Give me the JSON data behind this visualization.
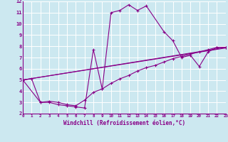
{
  "xlabel": "Windchill (Refroidissement éolien,°C)",
  "xlim": [
    0,
    23
  ],
  "ylim": [
    2,
    12
  ],
  "xticks": [
    0,
    1,
    2,
    3,
    4,
    5,
    6,
    7,
    8,
    9,
    10,
    11,
    12,
    13,
    14,
    15,
    16,
    17,
    18,
    19,
    20,
    21,
    22,
    23
  ],
  "yticks": [
    2,
    3,
    4,
    5,
    6,
    7,
    8,
    9,
    10,
    11,
    12
  ],
  "background_color": "#cce8f0",
  "line_color": "#880088",
  "grid_color": "#ffffff",
  "lines": [
    {
      "x": [
        0,
        1,
        2,
        3,
        4,
        5,
        6,
        7,
        8,
        9,
        10,
        11,
        12,
        13,
        14,
        16,
        17,
        18,
        19,
        20,
        21,
        22,
        23
      ],
      "y": [
        5.0,
        5.1,
        3.0,
        3.0,
        2.8,
        2.7,
        2.6,
        2.5,
        7.7,
        4.2,
        11.0,
        11.2,
        11.7,
        11.2,
        11.6,
        9.3,
        8.5,
        7.0,
        7.2,
        6.2,
        7.5,
        7.9,
        7.9
      ],
      "marker": true
    },
    {
      "x": [
        0,
        2,
        3,
        4,
        5,
        6,
        7,
        8,
        9,
        10,
        11,
        12,
        13,
        14,
        15,
        16,
        17,
        18,
        19,
        20,
        21,
        22,
        23
      ],
      "y": [
        5.0,
        3.0,
        3.1,
        3.0,
        2.8,
        2.7,
        3.2,
        3.9,
        4.2,
        4.7,
        5.1,
        5.4,
        5.8,
        6.1,
        6.3,
        6.6,
        6.9,
        7.1,
        7.3,
        7.5,
        7.7,
        7.9,
        7.9
      ],
      "marker": true
    },
    {
      "x": [
        0,
        23
      ],
      "y": [
        5.0,
        7.9
      ],
      "marker": false
    },
    {
      "x": [
        0,
        23
      ],
      "y": [
        5.0,
        7.85
      ],
      "marker": false
    }
  ]
}
